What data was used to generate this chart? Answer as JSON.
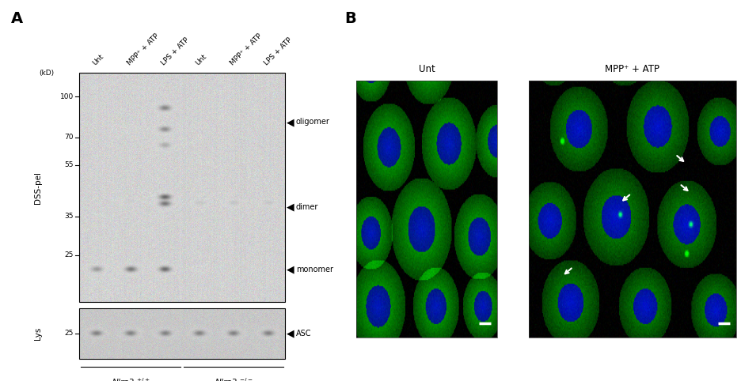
{
  "panel_A_label": "A",
  "panel_B_label": "B",
  "background_color": "#ffffff",
  "panel_A": {
    "ylabel_dss": "DSS-pel",
    "ylabel_lys": "Lys",
    "kd_label": "(kD)",
    "dss_ticks": [
      100,
      70,
      55,
      35,
      25
    ],
    "lys_tick": 25,
    "lane_labels": [
      "Unt",
      "MPP⁺ + ATP",
      "LPS + ATP",
      "Unt",
      "MPP⁺ + ATP",
      "LPS + ATP"
    ],
    "band_annotations": [
      "oligomer",
      "dimer",
      "monomer",
      "ASC"
    ]
  },
  "panel_B": {
    "unt_label": "Unt",
    "mpp_label": "MPP⁺ + ATP",
    "arrow_color": "#ffffff",
    "scalebar_color": "#ffffff"
  }
}
